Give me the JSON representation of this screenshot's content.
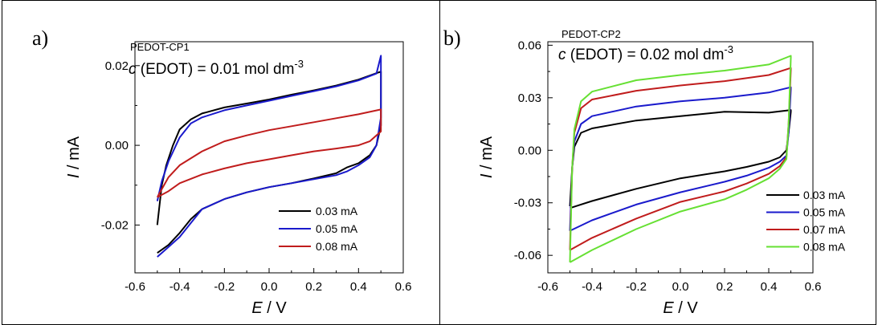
{
  "chart_data": [
    {
      "type": "line",
      "panel_label": "a)",
      "title_annotation": "PEDOT-CP1",
      "concentration": {
        "italic": "c",
        "text": " (EDOT) = 0.01 mol dm",
        "sup": "-3"
      },
      "xlabel": {
        "italic": "E",
        "text": " / V"
      },
      "ylabel": {
        "italic": "I",
        "text": " / mA"
      },
      "xlim": [
        -0.6,
        0.6
      ],
      "ylim": [
        -0.032,
        0.026
      ],
      "xticks": [
        -0.6,
        -0.4,
        -0.2,
        0.0,
        0.2,
        0.4,
        0.6
      ],
      "xtick_labels": [
        "-0.6",
        "-0.4",
        "-0.2",
        "0.0",
        "0.2",
        "0.4",
        "0.6"
      ],
      "yticks": [
        -0.02,
        0.0,
        0.02
      ],
      "ytick_labels": [
        "-0.02",
        "0.00",
        "0.02"
      ],
      "grid": false,
      "legend_position": "bottom-right",
      "series": [
        {
          "name": "0.03 mA",
          "color": "#000000",
          "forward": [
            [
              -0.5,
              -0.027
            ],
            [
              -0.45,
              -0.025
            ],
            [
              -0.4,
              -0.022
            ],
            [
              -0.35,
              -0.0185
            ],
            [
              -0.3,
              -0.016
            ],
            [
              -0.2,
              -0.0135
            ],
            [
              -0.1,
              -0.0118
            ],
            [
              0.0,
              -0.0105
            ],
            [
              0.1,
              -0.0095
            ],
            [
              0.2,
              -0.0083
            ],
            [
              0.3,
              -0.007
            ],
            [
              0.35,
              -0.0055
            ],
            [
              0.4,
              -0.0045
            ],
            [
              0.45,
              -0.0025
            ],
            [
              0.48,
              0.0
            ],
            [
              0.5,
              0.005
            ]
          ],
          "reverse": [
            [
              0.5,
              0.0185
            ],
            [
              0.4,
              0.0165
            ],
            [
              0.3,
              0.015
            ],
            [
              0.2,
              0.0138
            ],
            [
              0.1,
              0.0127
            ],
            [
              0.0,
              0.0115
            ],
            [
              -0.1,
              0.0105
            ],
            [
              -0.2,
              0.0095
            ],
            [
              -0.3,
              0.008
            ],
            [
              -0.35,
              0.0065
            ],
            [
              -0.4,
              0.004
            ],
            [
              -0.43,
              0.0
            ],
            [
              -0.46,
              -0.005
            ],
            [
              -0.48,
              -0.01
            ],
            [
              -0.5,
              -0.02
            ]
          ]
        },
        {
          "name": "0.05 mA",
          "color": "#1a1acc",
          "forward": [
            [
              -0.5,
              -0.028
            ],
            [
              -0.45,
              -0.0255
            ],
            [
              -0.4,
              -0.023
            ],
            [
              -0.35,
              -0.0195
            ],
            [
              -0.3,
              -0.016
            ],
            [
              -0.2,
              -0.0135
            ],
            [
              -0.1,
              -0.0118
            ],
            [
              0.0,
              -0.0105
            ],
            [
              0.1,
              -0.0095
            ],
            [
              0.2,
              -0.0085
            ],
            [
              0.3,
              -0.0075
            ],
            [
              0.35,
              -0.0065
            ],
            [
              0.4,
              -0.005
            ],
            [
              0.45,
              -0.003
            ],
            [
              0.48,
              0.0
            ],
            [
              0.5,
              0.007
            ]
          ],
          "reverse": [
            [
              0.5,
              0.0225
            ],
            [
              0.48,
              0.018
            ],
            [
              0.4,
              0.0163
            ],
            [
              0.3,
              0.0148
            ],
            [
              0.2,
              0.0136
            ],
            [
              0.1,
              0.0124
            ],
            [
              0.0,
              0.0112
            ],
            [
              -0.1,
              0.01
            ],
            [
              -0.2,
              0.0088
            ],
            [
              -0.3,
              0.007
            ],
            [
              -0.35,
              0.0055
            ],
            [
              -0.4,
              0.002
            ],
            [
              -0.45,
              -0.004
            ],
            [
              -0.48,
              -0.009
            ],
            [
              -0.5,
              -0.014
            ]
          ]
        },
        {
          "name": "0.08 mA",
          "color": "#c01c1c",
          "forward": [
            [
              -0.5,
              -0.013
            ],
            [
              -0.45,
              -0.0115
            ],
            [
              -0.4,
              -0.0095
            ],
            [
              -0.3,
              -0.0073
            ],
            [
              -0.2,
              -0.0058
            ],
            [
              -0.1,
              -0.0045
            ],
            [
              0.0,
              -0.0035
            ],
            [
              0.1,
              -0.0025
            ],
            [
              0.2,
              -0.0015
            ],
            [
              0.3,
              -0.0008
            ],
            [
              0.4,
              0.0
            ],
            [
              0.45,
              0.001
            ],
            [
              0.5,
              0.0035
            ]
          ],
          "reverse": [
            [
              0.5,
              0.009
            ],
            [
              0.4,
              0.0078
            ],
            [
              0.3,
              0.0068
            ],
            [
              0.2,
              0.0058
            ],
            [
              0.1,
              0.0048
            ],
            [
              0.0,
              0.0038
            ],
            [
              -0.1,
              0.0025
            ],
            [
              -0.2,
              0.001
            ],
            [
              -0.3,
              -0.0015
            ],
            [
              -0.4,
              -0.005
            ],
            [
              -0.45,
              -0.008
            ],
            [
              -0.5,
              -0.013
            ]
          ]
        }
      ]
    },
    {
      "type": "line",
      "panel_label": "b)",
      "title_annotation": "PEDOT-CP2",
      "concentration": {
        "italic": "c",
        "text": " (EDOT) = 0.02 mol dm",
        "sup": "-3"
      },
      "xlabel": {
        "italic": "E",
        "text": " / V"
      },
      "ylabel": {
        "italic": "I",
        "text": " / mA"
      },
      "xlim": [
        -0.6,
        0.6
      ],
      "ylim": [
        -0.07,
        0.062
      ],
      "xticks": [
        -0.6,
        -0.4,
        -0.2,
        0.0,
        0.2,
        0.4,
        0.6
      ],
      "xtick_labels": [
        "-0.6",
        "-0.4",
        "-0.2",
        "0.0",
        "0.2",
        "0.4",
        "0.6"
      ],
      "yticks": [
        -0.06,
        -0.03,
        0.0,
        0.03,
        0.06
      ],
      "ytick_labels": [
        "-0.06",
        "-0.03",
        "0.00",
        "0.03",
        "0.06"
      ],
      "grid": false,
      "legend_position": "bottom-right",
      "series": [
        {
          "name": "0.03 mA",
          "color": "#000000",
          "forward": [
            [
              -0.5,
              -0.033
            ],
            [
              -0.4,
              -0.029
            ],
            [
              -0.2,
              -0.022
            ],
            [
              0.0,
              -0.016
            ],
            [
              0.2,
              -0.012
            ],
            [
              0.3,
              -0.0095
            ],
            [
              0.4,
              -0.0065
            ],
            [
              0.45,
              -0.004
            ],
            [
              0.48,
              0.0
            ],
            [
              0.49,
              0.01
            ],
            [
              0.5,
              0.022
            ]
          ],
          "reverse": [
            [
              0.5,
              0.023
            ],
            [
              0.4,
              0.0215
            ],
            [
              0.2,
              0.022
            ],
            [
              0.0,
              0.0195
            ],
            [
              -0.2,
              0.017
            ],
            [
              -0.4,
              0.0125
            ],
            [
              -0.45,
              0.01
            ],
            [
              -0.48,
              0.002
            ],
            [
              -0.49,
              -0.01
            ],
            [
              -0.5,
              -0.032
            ]
          ]
        },
        {
          "name": "0.05 mA",
          "color": "#1a1acc",
          "forward": [
            [
              -0.5,
              -0.046
            ],
            [
              -0.4,
              -0.04
            ],
            [
              -0.2,
              -0.031
            ],
            [
              0.0,
              -0.024
            ],
            [
              0.2,
              -0.018
            ],
            [
              0.3,
              -0.0145
            ],
            [
              0.4,
              -0.01
            ],
            [
              0.45,
              -0.0065
            ],
            [
              0.48,
              -0.003
            ],
            [
              0.49,
              0.01
            ],
            [
              0.5,
              0.035
            ]
          ],
          "reverse": [
            [
              0.5,
              0.036
            ],
            [
              0.4,
              0.033
            ],
            [
              0.2,
              0.03
            ],
            [
              0.0,
              0.028
            ],
            [
              -0.2,
              0.025
            ],
            [
              -0.4,
              0.0195
            ],
            [
              -0.45,
              0.015
            ],
            [
              -0.48,
              0.005
            ],
            [
              -0.49,
              -0.01
            ],
            [
              -0.5,
              -0.046
            ]
          ]
        },
        {
          "name": "0.07 mA",
          "color": "#c01c1c",
          "forward": [
            [
              -0.5,
              -0.057
            ],
            [
              -0.4,
              -0.05
            ],
            [
              -0.2,
              -0.039
            ],
            [
              0.0,
              -0.0295
            ],
            [
              0.2,
              -0.0235
            ],
            [
              0.3,
              -0.019
            ],
            [
              0.4,
              -0.0135
            ],
            [
              0.45,
              -0.009
            ],
            [
              0.48,
              -0.004
            ],
            [
              0.49,
              0.015
            ],
            [
              0.5,
              0.046
            ]
          ],
          "reverse": [
            [
              0.5,
              0.047
            ],
            [
              0.4,
              0.043
            ],
            [
              0.2,
              0.0395
            ],
            [
              0.0,
              0.037
            ],
            [
              -0.2,
              0.034
            ],
            [
              -0.4,
              0.029
            ],
            [
              -0.45,
              0.024
            ],
            [
              -0.48,
              0.01
            ],
            [
              -0.49,
              -0.01
            ],
            [
              -0.5,
              -0.057
            ]
          ]
        },
        {
          "name": "0.08 mA",
          "color": "#66e033",
          "forward": [
            [
              -0.5,
              -0.064
            ],
            [
              -0.4,
              -0.057
            ],
            [
              -0.2,
              -0.045
            ],
            [
              0.0,
              -0.035
            ],
            [
              0.2,
              -0.028
            ],
            [
              0.3,
              -0.0225
            ],
            [
              0.4,
              -0.016
            ],
            [
              0.45,
              -0.0105
            ],
            [
              0.48,
              -0.005
            ],
            [
              0.49,
              0.015
            ],
            [
              0.5,
              0.053
            ]
          ],
          "reverse": [
            [
              0.5,
              0.054
            ],
            [
              0.4,
              0.049
            ],
            [
              0.2,
              0.0455
            ],
            [
              0.0,
              0.043
            ],
            [
              -0.2,
              0.04
            ],
            [
              -0.4,
              0.0335
            ],
            [
              -0.45,
              0.028
            ],
            [
              -0.48,
              0.012
            ],
            [
              -0.49,
              -0.01
            ],
            [
              -0.5,
              -0.064
            ]
          ]
        }
      ]
    }
  ]
}
